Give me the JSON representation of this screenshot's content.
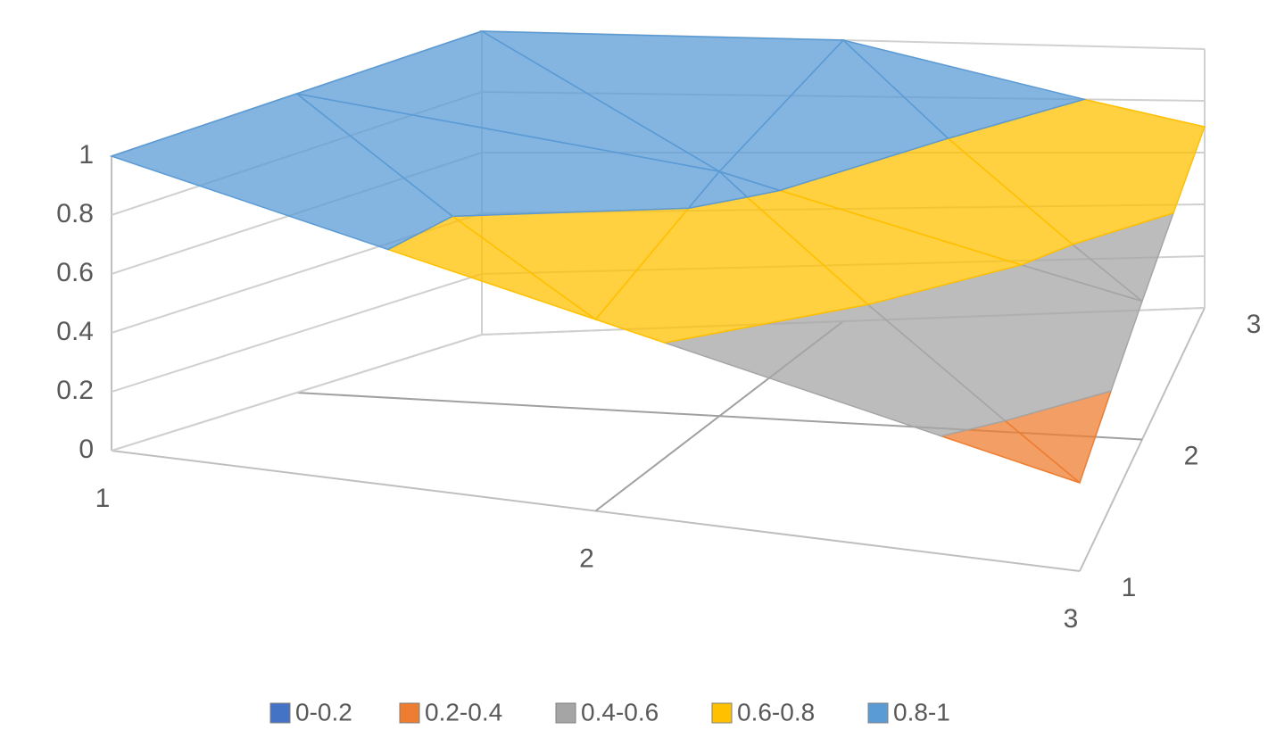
{
  "chart_data": {
    "type": "surface",
    "categories": [
      "1",
      "2",
      "3"
    ],
    "series": [
      {
        "name": "1",
        "values": [
          1,
          0.65,
          0.3
        ]
      },
      {
        "name": "2",
        "values": [
          1,
          0.85,
          0.5
        ]
      },
      {
        "name": "3",
        "values": [
          1,
          1,
          0.7
        ]
      }
    ],
    "ylim": [
      0,
      1
    ],
    "yticks": [
      0,
      0.2,
      0.4,
      0.6,
      0.8,
      1
    ],
    "grid": true,
    "legend": [
      {
        "name": "0-0.2",
        "range": [
          0,
          0.2
        ],
        "color": "#4472c4"
      },
      {
        "name": "0.2-0.4",
        "range": [
          0.2,
          0.4
        ],
        "color": "#ed7d31"
      },
      {
        "name": "0.4-0.6",
        "range": [
          0.4,
          0.6
        ],
        "color": "#a5a5a5"
      },
      {
        "name": "0.6-0.8",
        "range": [
          0.6,
          0.8
        ],
        "color": "#ffc000"
      },
      {
        "name": "0.8-1",
        "range": [
          0.8,
          1
        ],
        "color": "#5b9bd5"
      }
    ]
  }
}
